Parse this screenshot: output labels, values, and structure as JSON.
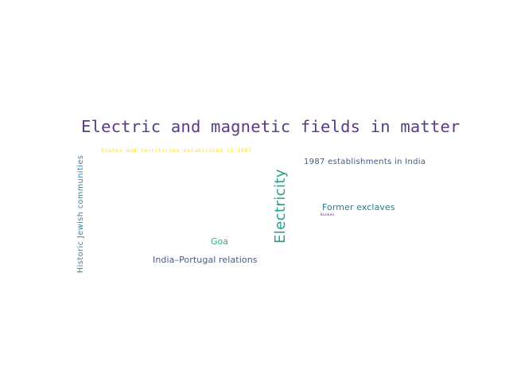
{
  "word_cloud": {
    "background": "#ffffff",
    "words": [
      {
        "text": "Electric and magnetic fields in matter",
        "color": "#5a3a8a"
      },
      {
        "text": "States and territories established in 1987",
        "color": "#f2dc26"
      },
      {
        "text": "1987 establishments in India",
        "color": "#3b5a8a"
      },
      {
        "text": "Electricity",
        "color": "#22a08a"
      },
      {
        "text": "Historic Jewish communities",
        "color": "#3a7ea0"
      },
      {
        "text": "Former exclaves",
        "color": "#2b7a8c"
      },
      {
        "text": "Konkan",
        "color": "#6a2a7a"
      },
      {
        "text": "Goa",
        "color": "#2fae84"
      },
      {
        "text": "India–Portugal relations",
        "color": "#4a5a8a"
      }
    ]
  }
}
